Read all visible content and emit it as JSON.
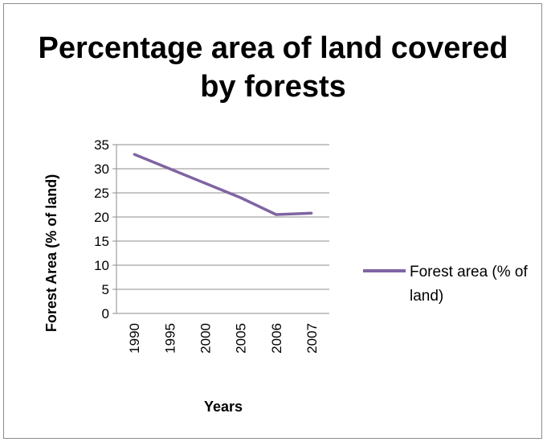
{
  "chart_data": {
    "type": "line",
    "title": "Percentage area of land covered by forests",
    "xlabel": "Years",
    "ylabel": "Forest Area (% of land)",
    "categories": [
      "1990",
      "1995",
      "2000",
      "2005",
      "2006",
      "2007"
    ],
    "series": [
      {
        "name": "Forest area (% of land)",
        "values": [
          33.0,
          30.0,
          27.0,
          24.0,
          20.5,
          20.8
        ],
        "color": "#8064a2"
      }
    ],
    "ylim": [
      0,
      35
    ],
    "yticks": [
      "0",
      "5",
      "10",
      "15",
      "20",
      "25",
      "30",
      "35"
    ],
    "grid": true,
    "legend": "right"
  }
}
